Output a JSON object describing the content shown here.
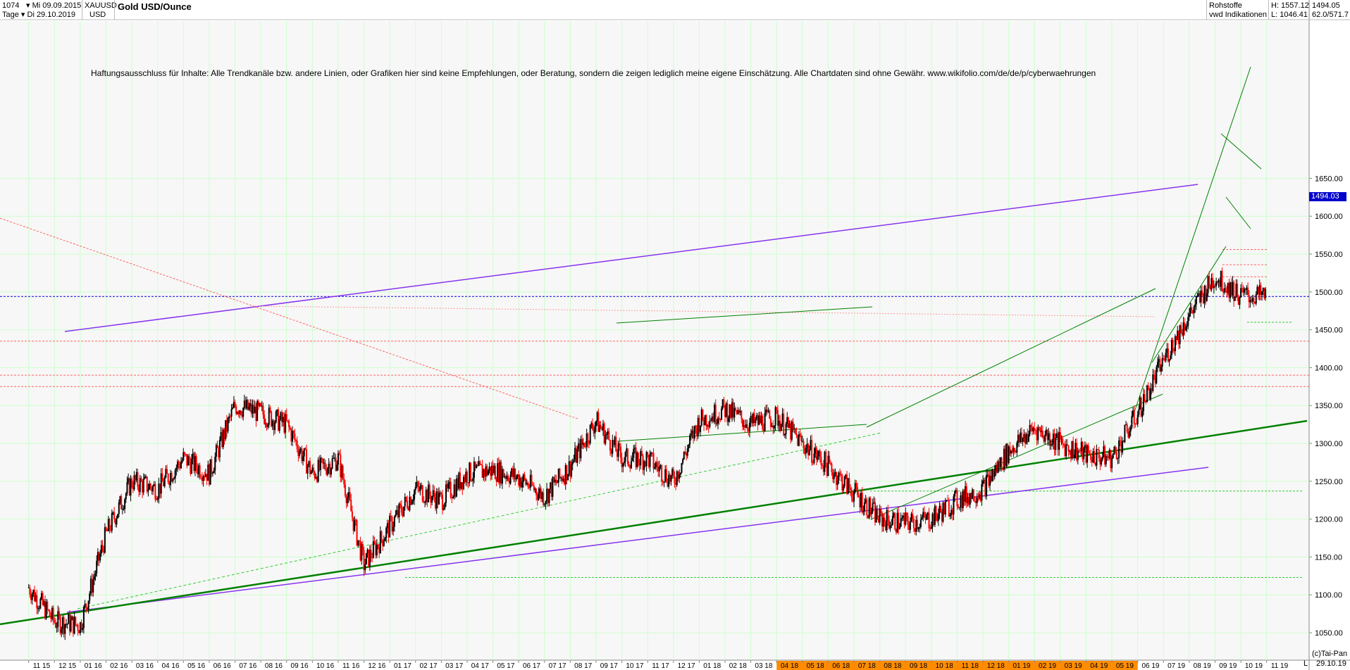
{
  "header": {
    "bars_count": "1074",
    "start_date": "Mi 09.09.2015",
    "symbol": "XAUUSD",
    "period_label": "Tage",
    "end_date_label": "Di 29.10.2019",
    "currency": "USD",
    "title": "Gold USD/Ounce",
    "category": "Rohstoffe",
    "source": "vwd Indikationen",
    "high_label": "H: 1557.12",
    "low_label": "L: 1046.41",
    "last_value": "1494.05",
    "side_value": "62.0/571.7"
  },
  "disclaimer": "Haftungsausschluss für Inhalte: Alle Trendkanäle bzw. andere Linien, oder Grafiken hier sind keine Empfehlungen, oder Beratung, sondern die zeigen lediglich meine eigene Einschätzung. Alle Chartdaten sind ohne Gewähr.  www.wikifolio.com/de/de/p/cyberwaehrungen",
  "last_price_tag": "1494.03",
  "copyright": "(c)Tai-Pan",
  "footer_end_date": "29.10.19",
  "footer_mark": "L",
  "colors": {
    "up_candle": "#000000",
    "down_candle": "#ff0000",
    "channel_green": "#008000",
    "trend_purple": "#8833ee",
    "support_dashed": "#ff6666",
    "current_line": "#0000cc",
    "highlight_axis": "#ff8c00"
  },
  "chart_data": {
    "type": "line",
    "title": "Gold USD/Ounce",
    "xlabel": "",
    "ylabel": "",
    "ylim": [
      1020,
      1690
    ],
    "grid": true,
    "y_ticks": [
      1050,
      1100,
      1150,
      1200,
      1250,
      1300,
      1350,
      1400,
      1450,
      1500,
      1550,
      1600,
      1650
    ],
    "x_ticks": [
      "11 15",
      "12 15",
      "01 16",
      "02 16",
      "03 16",
      "04 16",
      "05 16",
      "06 16",
      "07 16",
      "08 16",
      "09 16",
      "10 16",
      "11 16",
      "12 16",
      "01 17",
      "02 17",
      "03 17",
      "04 17",
      "05 17",
      "06 17",
      "07 17",
      "08 17",
      "09 17",
      "10 17",
      "11 17",
      "12 17",
      "01 18",
      "02 18",
      "03 18",
      "04 18",
      "05 18",
      "06 18",
      "07 18",
      "08 18",
      "09 18",
      "10 18",
      "11 18",
      "12 18",
      "01 19",
      "02 19",
      "03 19",
      "04 19",
      "05 19",
      "06 19",
      "07 19",
      "08 19",
      "09 19",
      "10 19",
      "11 19"
    ],
    "x_tick_highlight_range": [
      "04 18",
      "06 19"
    ],
    "series": [
      {
        "name": "XAUUSD",
        "points": [
          [
            "11 15",
            1110
          ],
          [
            "12 15",
            1065
          ],
          [
            "01 16",
            1060
          ],
          [
            "02 16",
            1180
          ],
          [
            "03 16",
            1250
          ],
          [
            "04 16",
            1240
          ],
          [
            "05 16",
            1280
          ],
          [
            "06 16",
            1260
          ],
          [
            "07 16",
            1350
          ],
          [
            "08 16",
            1340
          ],
          [
            "09 16",
            1325
          ],
          [
            "10 16",
            1260
          ],
          [
            "11 16",
            1280
          ],
          [
            "12 16",
            1140
          ],
          [
            "01 17",
            1190
          ],
          [
            "02 17",
            1240
          ],
          [
            "03 17",
            1225
          ],
          [
            "04 17",
            1260
          ],
          [
            "05 17",
            1265
          ],
          [
            "06 17",
            1255
          ],
          [
            "07 17",
            1230
          ],
          [
            "08 17",
            1270
          ],
          [
            "09 17",
            1330
          ],
          [
            "10 17",
            1280
          ],
          [
            "11 17",
            1280
          ],
          [
            "12 17",
            1250
          ],
          [
            "01 18",
            1330
          ],
          [
            "02 18",
            1345
          ],
          [
            "03 18",
            1325
          ],
          [
            "04 18",
            1335
          ],
          [
            "05 18",
            1300
          ],
          [
            "06 18",
            1270
          ],
          [
            "07 18",
            1235
          ],
          [
            "08 18",
            1200
          ],
          [
            "09 18",
            1195
          ],
          [
            "10 18",
            1200
          ],
          [
            "11 18",
            1225
          ],
          [
            "12 18",
            1240
          ],
          [
            "01 19",
            1290
          ],
          [
            "02 19",
            1320
          ],
          [
            "03 19",
            1300
          ],
          [
            "04 19",
            1285
          ],
          [
            "05 19",
            1280
          ],
          [
            "06 19",
            1340
          ],
          [
            "07 19",
            1410
          ],
          [
            "08 19",
            1470
          ],
          [
            "09 19",
            1520
          ],
          [
            "10 19",
            1495
          ],
          [
            "11 19",
            1494
          ]
        ]
      }
    ],
    "annotations": {
      "current_price": 1494.03,
      "horizontal_levels_red": [
        1556,
        1536,
        1520,
        1435,
        1390,
        1375
      ],
      "horizontal_levels_green": [
        1460,
        1237,
        1123
      ]
    }
  }
}
